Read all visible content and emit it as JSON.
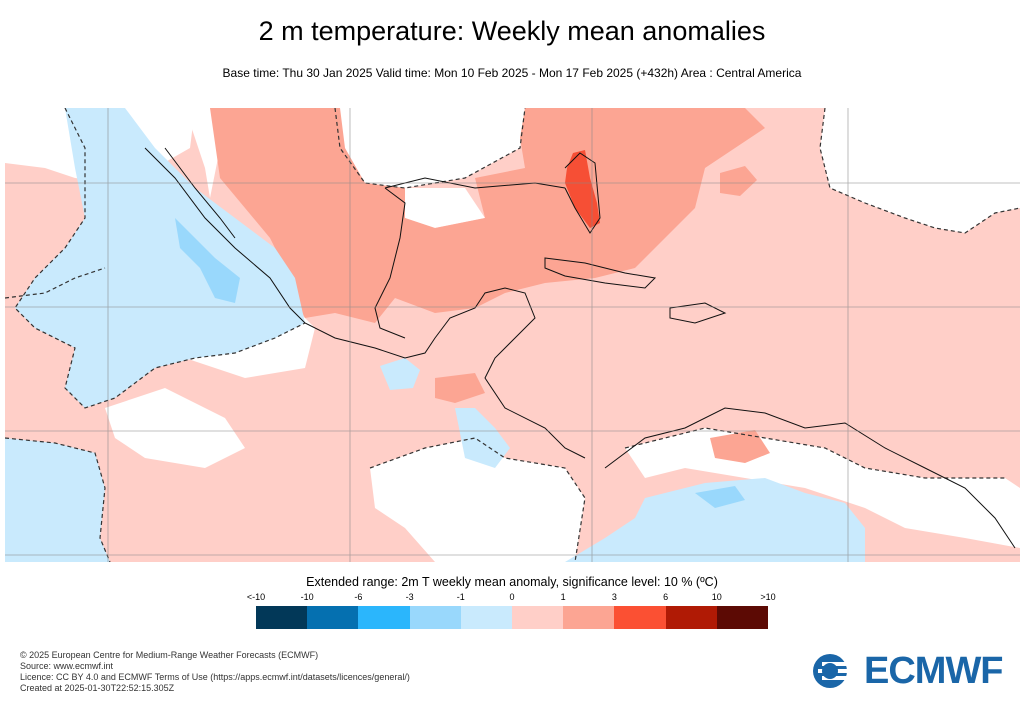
{
  "header": {
    "title": "2 m temperature: Weekly mean anomalies",
    "subtitle": "Base time: Thu 30 Jan 2025 Valid time: Mon 10 Feb 2025 - Mon 17 Feb 2025 (+432h) Area : Central America"
  },
  "map": {
    "region": "Central America",
    "colors": {
      "base_pink": "#ffcfc8",
      "salmon": "#fca593",
      "red": "#f64f35",
      "light_blue": "#c9eafd",
      "mid_blue": "#99d8fc",
      "white": "#ffffff"
    }
  },
  "legend": {
    "title": "Extended range: 2m T weekly mean anomaly, significance level: 10 % (ºC)",
    "ticks": [
      "<-10",
      "-10",
      "-6",
      "-3",
      "-1",
      "0",
      "1",
      "3",
      "6",
      "10",
      ">10"
    ],
    "colors": [
      "#023858",
      "#0570b0",
      "#2bb6fc",
      "#99d8fc",
      "#c9eafd",
      "#ffcfc8",
      "#fca593",
      "#fb5033",
      "#b01a05",
      "#5c0a04"
    ]
  },
  "footer": {
    "lines": [
      "© 2025 European Centre for Medium-Range Weather Forecasts (ECMWF)",
      "Source: www.ecmwf.int",
      "Licence: CC BY 4.0 and ECMWF Terms of Use (https://apps.ecmwf.int/datasets/licences/general/)",
      "Created at 2025-01-30T22:52:15.305Z"
    ],
    "logo_text": "ECMWF"
  }
}
